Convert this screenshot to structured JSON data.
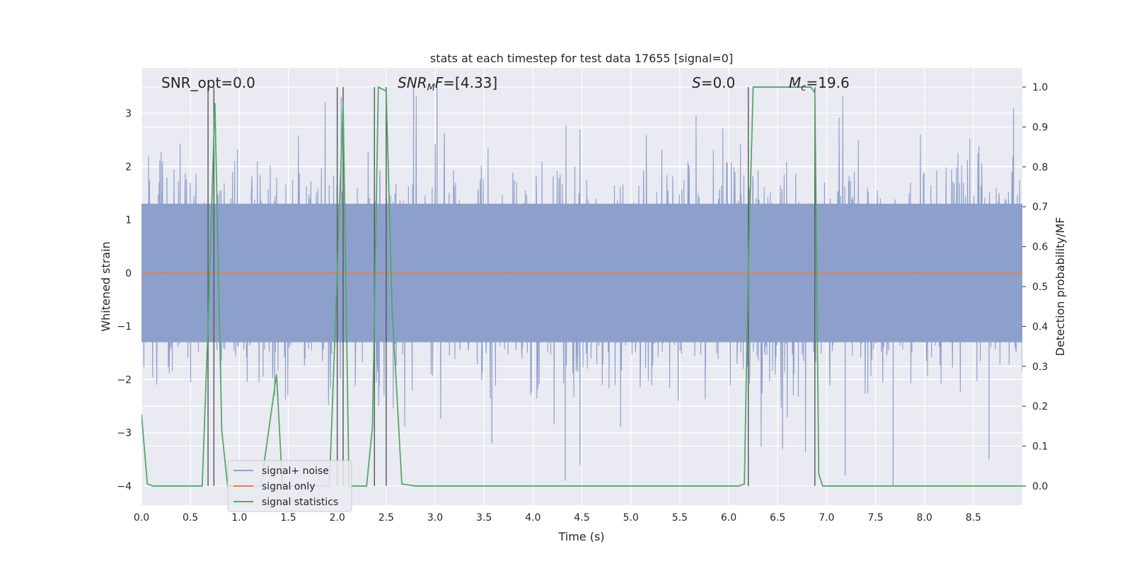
{
  "chart_data": {
    "type": "line",
    "title": "stats at each timestep for test data 17655 [signal=0]",
    "xlabel": "Time (s)",
    "ylabel": "Whitened strain",
    "y2label": "Detection probability/MF",
    "xlim": [
      0,
      9.0
    ],
    "ylim": [
      -4.36,
      3.85
    ],
    "y2lim": [
      -0.048,
      1.048
    ],
    "x_ticks": [
      "0.0",
      "0.5",
      "1.0",
      "1.5",
      "2.0",
      "2.5",
      "3.0",
      "3.5",
      "4.0",
      "4.5",
      "5.0",
      "5.5",
      "6.0",
      "6.5",
      "7.0",
      "7.5",
      "8.0",
      "8.5"
    ],
    "y_ticks": [
      "3",
      "2",
      "1",
      "0",
      "−1",
      "−2",
      "−3",
      "−4"
    ],
    "y2_ticks": [
      "1.0",
      "0.9",
      "0.8",
      "0.7",
      "0.6",
      "0.5",
      "0.4",
      "0.3",
      "0.2",
      "0.1",
      "0.0"
    ],
    "grid": true,
    "legend_position": "lower-left",
    "annotations": {
      "snr_opt": "SNR_opt=0.0",
      "snr_mf_main": "SNR",
      "snr_mf_sub": "M",
      "snr_mf_f": "F",
      "snr_mf_value": "=[4.33]",
      "s_var": "S",
      "s_value": "=0.0",
      "mc_var": "M",
      "mc_sub": "c",
      "mc_value": "=19.6"
    },
    "colors": {
      "background": "#eaeaf2",
      "grid": "#ffffff",
      "signal_noise": "#8da0cb",
      "signal_only": "#dd8452",
      "statistics": "#55a868",
      "vlines": "#555555"
    },
    "series": [
      {
        "name": "signal+ noise",
        "axis": "left",
        "style": "dense-noise",
        "x_range": [
          0,
          9.0
        ],
        "band_low": -1.3,
        "band_high": 1.3,
        "spike_max": 3.5,
        "spike_min": -4.0,
        "notable_spikes": [
          {
            "x": 0.74,
            "y": 3.2
          },
          {
            "x": 1.36,
            "y": -2.3
          },
          {
            "x": 2.04,
            "y": 3.3
          },
          {
            "x": 2.78,
            "y": 3.5
          },
          {
            "x": 3.02,
            "y": 3.5
          },
          {
            "x": 3.58,
            "y": -3.2
          },
          {
            "x": 4.33,
            "y": -3.9
          },
          {
            "x": 4.48,
            "y": -3.6
          },
          {
            "x": 6.55,
            "y": -3.3
          },
          {
            "x": 7.19,
            "y": -3.8
          },
          {
            "x": 7.68,
            "y": -4.0
          },
          {
            "x": 8.66,
            "y": -3.5
          },
          {
            "x": 8.91,
            "y": 3.1
          }
        ]
      },
      {
        "name": "signal only",
        "axis": "left",
        "x": [
          0,
          9.0
        ],
        "y": [
          0,
          0
        ]
      },
      {
        "name": "signal statistics",
        "axis": "right",
        "x": [
          0.0,
          0.06,
          0.12,
          0.62,
          0.68,
          0.75,
          0.82,
          0.88,
          1.22,
          1.38,
          1.44,
          1.92,
          1.98,
          2.06,
          2.12,
          2.18,
          2.3,
          2.36,
          2.42,
          2.5,
          2.56,
          2.66,
          2.8,
          6.1,
          6.16,
          6.2,
          6.25,
          6.8,
          6.84,
          6.88,
          6.92,
          6.96,
          7.04,
          9.0
        ],
        "y": [
          0.18,
          0.005,
          0.0,
          0.0,
          0.4,
          0.96,
          0.14,
          0.0,
          0.0,
          0.28,
          0.0,
          0.0,
          0.4,
          0.96,
          0.0,
          0.0,
          0.0,
          0.15,
          1.0,
          0.99,
          0.45,
          0.005,
          0.0,
          0.0,
          0.005,
          0.55,
          1.0,
          1.0,
          1.0,
          0.985,
          0.03,
          0.0,
          0.0,
          0.0
        ]
      }
    ],
    "vlines": [
      0.68,
      0.74,
      2.0,
      2.06,
      2.38,
      2.5,
      6.2,
      6.88
    ]
  }
}
